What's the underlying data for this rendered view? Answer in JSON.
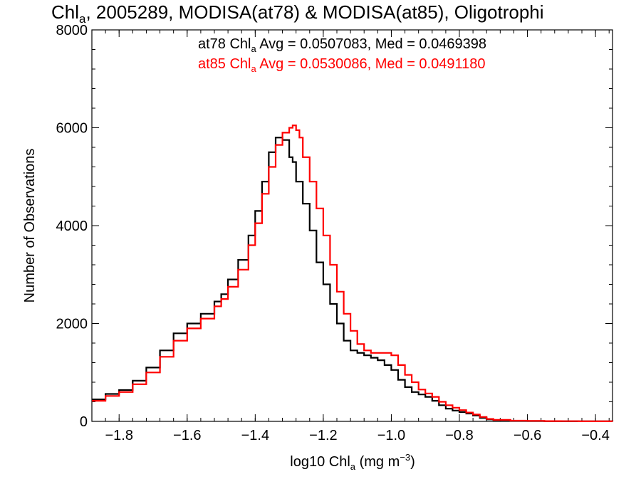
{
  "chart_data": {
    "type": "line",
    "title": "Chl_a, 2005289, MODISA(at78) & MODISA(at85), Oligotrophi",
    "xlabel": "log10 Chl_a (mg m^-3)",
    "ylabel": "Number of Observations",
    "xlim": [
      -1.88,
      -0.35
    ],
    "ylim": [
      0,
      8000
    ],
    "x_ticks": [
      -1.8,
      -1.6,
      -1.4,
      -1.2,
      -1.0,
      -0.8,
      -0.6,
      -0.4
    ],
    "x_tick_labels": [
      "−1.8",
      "−1.6",
      "−1.4",
      "−1.2",
      "−1.0",
      "−0.8",
      "−0.6",
      "−0.4"
    ],
    "y_ticks": [
      0,
      2000,
      4000,
      6000,
      8000
    ],
    "y_tick_labels": [
      "0",
      "2000",
      "4000",
      "6000",
      "8000"
    ],
    "grid": false,
    "annotations": [
      {
        "text": "at78 Chl_a Avg = 0.0507083, Med = 0.0469398",
        "color": "#000000"
      },
      {
        "text": "at85 Chl_a Avg = 0.0530086, Med = 0.0491180",
        "color": "#ff0000"
      }
    ],
    "series": [
      {
        "color": "#000000",
        "x": [
          -1.88,
          -1.84,
          -1.8,
          -1.76,
          -1.72,
          -1.68,
          -1.64,
          -1.6,
          -1.56,
          -1.52,
          -1.5,
          -1.48,
          -1.45,
          -1.42,
          -1.4,
          -1.38,
          -1.36,
          -1.34,
          -1.32,
          -1.3,
          -1.29,
          -1.28,
          -1.26,
          -1.24,
          -1.22,
          -1.2,
          -1.18,
          -1.16,
          -1.14,
          -1.12,
          -1.1,
          -1.08,
          -1.06,
          -1.04,
          -1.02,
          -1.0,
          -0.98,
          -0.96,
          -0.94,
          -0.92,
          -0.9,
          -0.88,
          -0.86,
          -0.84,
          -0.82,
          -0.8,
          -0.78,
          -0.76,
          -0.74,
          -0.72,
          -0.7,
          -0.65,
          -0.6,
          -0.55,
          -0.5,
          -0.45,
          -0.4,
          -0.35
        ],
        "y": [
          450,
          560,
          640,
          830,
          1100,
          1450,
          1800,
          2000,
          2200,
          2450,
          2600,
          2900,
          3300,
          3800,
          4300,
          4900,
          5500,
          5800,
          5750,
          5400,
          5300,
          4900,
          4450,
          3900,
          3250,
          2800,
          2400,
          2000,
          1650,
          1450,
          1400,
          1350,
          1300,
          1250,
          1150,
          1050,
          850,
          700,
          600,
          550,
          500,
          420,
          330,
          260,
          220,
          190,
          160,
          120,
          70,
          40,
          25,
          12,
          8,
          5,
          3,
          2,
          1,
          0
        ]
      },
      {
        "color": "#ff0000",
        "x": [
          -1.88,
          -1.84,
          -1.8,
          -1.76,
          -1.72,
          -1.68,
          -1.64,
          -1.6,
          -1.56,
          -1.52,
          -1.5,
          -1.48,
          -1.45,
          -1.42,
          -1.4,
          -1.38,
          -1.36,
          -1.34,
          -1.32,
          -1.3,
          -1.29,
          -1.28,
          -1.27,
          -1.26,
          -1.24,
          -1.22,
          -1.2,
          -1.18,
          -1.16,
          -1.14,
          -1.12,
          -1.1,
          -1.08,
          -1.06,
          -1.04,
          -1.02,
          -1.0,
          -0.98,
          -0.96,
          -0.94,
          -0.92,
          -0.9,
          -0.88,
          -0.86,
          -0.84,
          -0.82,
          -0.8,
          -0.78,
          -0.76,
          -0.74,
          -0.72,
          -0.7,
          -0.65,
          -0.6,
          -0.55,
          -0.5,
          -0.45,
          -0.4,
          -0.35
        ],
        "y": [
          420,
          520,
          600,
          760,
          1000,
          1320,
          1650,
          1900,
          2100,
          2350,
          2500,
          2750,
          3100,
          3600,
          4050,
          4650,
          5200,
          5650,
          5900,
          6000,
          6050,
          5950,
          5800,
          5400,
          4900,
          4350,
          3800,
          3200,
          2650,
          2200,
          1850,
          1580,
          1450,
          1400,
          1400,
          1400,
          1350,
          1150,
          950,
          800,
          650,
          570,
          500,
          400,
          330,
          280,
          230,
          180,
          140,
          90,
          50,
          30,
          15,
          10,
          6,
          4,
          2,
          1,
          0
        ]
      }
    ]
  }
}
